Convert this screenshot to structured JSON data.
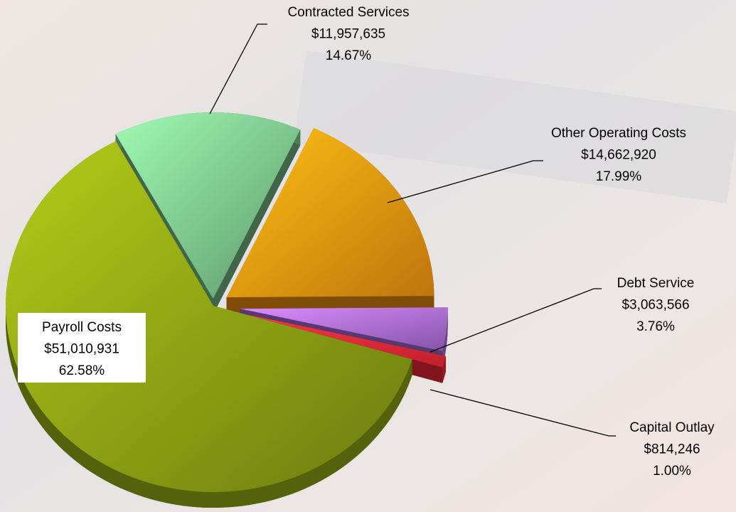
{
  "chart_data": {
    "type": "pie",
    "categories": [
      "Contracted Services",
      "Other Operating Costs",
      "Debt Service",
      "Capital Outlay",
      "Payroll Costs"
    ],
    "values": [
      11957635,
      14662920,
      3063566,
      814246,
      51010931
    ],
    "value_labels": [
      "$11,957,635",
      "$14,662,920",
      "$3,063,566",
      "$814,246",
      "$51,010,931"
    ],
    "percentages": [
      14.67,
      17.99,
      3.76,
      1.0,
      62.58
    ],
    "percentage_labels": [
      "14.67%",
      "17.99%",
      "3.76%",
      "1.00%",
      "62.58%"
    ],
    "colors": [
      "#7fc98f",
      "#ff9a10",
      "#b070e0",
      "#ff2a3a",
      "#8ea414"
    ]
  }
}
